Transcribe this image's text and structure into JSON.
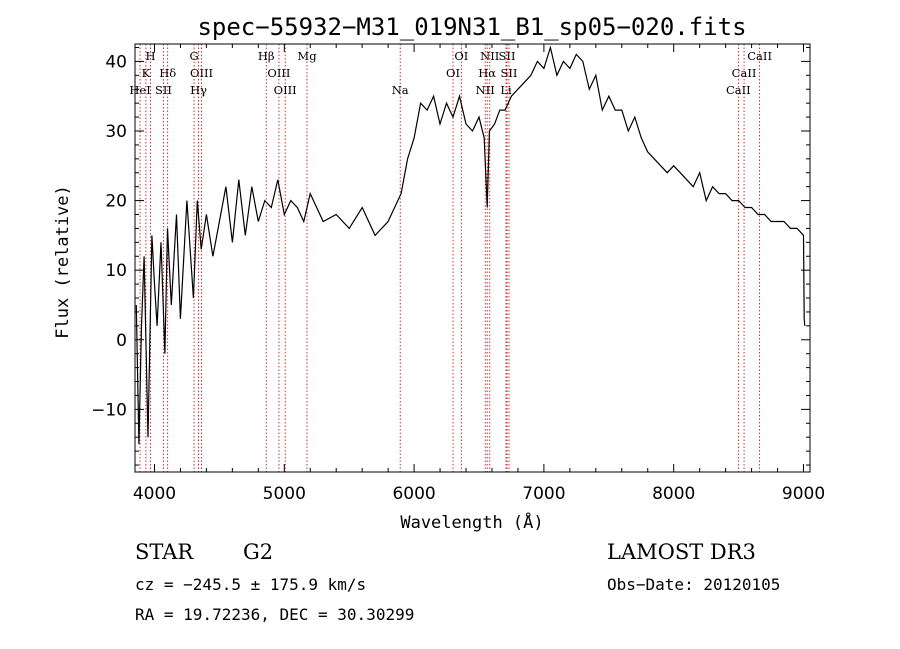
{
  "chart_data": {
    "type": "line",
    "title": "spec−55932−M31_019N31_B1_sp05−020.fits",
    "xlabel": "Wavelength (Å)",
    "ylabel": "Flux (relative)",
    "xlim": [
      3850,
      9050
    ],
    "ylim": [
      -19,
      42.5
    ],
    "x_ticks": [
      4000,
      5000,
      6000,
      7000,
      8000,
      9000
    ],
    "y_ticks": [
      -10,
      0,
      10,
      20,
      30,
      40
    ],
    "y_tick_labels": [
      "−10",
      "0",
      "10",
      "20",
      "30",
      "40"
    ],
    "x_tick_labels": [
      "4000",
      "5000",
      "6000",
      "7000",
      "8000",
      "9000"
    ],
    "grid": false,
    "series": [
      {
        "name": "spectrum",
        "x": [
          3860,
          3880,
          3900,
          3920,
          3950,
          3980,
          4000,
          4020,
          4050,
          4080,
          4100,
          4130,
          4170,
          4200,
          4250,
          4300,
          4330,
          4360,
          4400,
          4450,
          4500,
          4550,
          4600,
          4650,
          4700,
          4750,
          4800,
          4850,
          4900,
          4950,
          5000,
          5050,
          5100,
          5150,
          5200,
          5300,
          5400,
          5500,
          5600,
          5700,
          5800,
          5850,
          5900,
          5950,
          6000,
          6050,
          6100,
          6150,
          6200,
          6250,
          6300,
          6350,
          6400,
          6450,
          6500,
          6540,
          6563,
          6580,
          6620,
          6660,
          6700,
          6750,
          6800,
          6850,
          6900,
          6950,
          7000,
          7050,
          7100,
          7150,
          7200,
          7250,
          7300,
          7350,
          7400,
          7450,
          7500,
          7550,
          7600,
          7650,
          7700,
          7750,
          7800,
          7850,
          7900,
          7950,
          8000,
          8050,
          8100,
          8150,
          8200,
          8250,
          8300,
          8350,
          8400,
          8450,
          8500,
          8550,
          8600,
          8650,
          8700,
          8750,
          8800,
          8850,
          8900,
          8950,
          9000,
          9005,
          9010
        ],
        "values": [
          5,
          -15,
          2,
          12,
          -14,
          15,
          8,
          2,
          14,
          -2,
          16,
          5,
          18,
          3,
          20,
          6,
          20,
          13,
          18,
          12,
          17,
          22,
          14,
          23,
          15,
          22,
          17,
          20,
          19,
          23,
          18,
          20,
          19,
          17,
          21,
          17,
          18,
          16,
          19,
          15,
          17,
          19,
          21,
          26,
          29,
          34,
          33,
          35,
          31,
          34,
          32,
          35,
          31,
          30,
          32,
          29,
          19,
          30,
          31,
          33,
          33,
          35,
          36,
          37,
          38,
          40,
          39,
          42,
          38,
          40,
          39,
          41,
          40,
          36,
          38,
          33,
          35,
          33,
          33,
          30,
          32,
          29,
          27,
          26,
          25,
          24,
          25,
          24,
          23,
          22,
          24,
          20,
          22,
          21,
          21,
          20,
          20,
          19,
          19,
          18,
          18,
          17,
          17,
          17,
          16,
          16,
          15,
          3,
          2
        ]
      }
    ],
    "line_markers": [
      {
        "label": "H",
        "x": 3970,
        "row": 0
      },
      {
        "label": "K",
        "x": 3934,
        "row": 1
      },
      {
        "label": "HeI",
        "x": 3889,
        "row": 2
      },
      {
        "label": "SII",
        "x": 4069,
        "row": 2
      },
      {
        "label": "Hδ",
        "x": 4102,
        "row": 1
      },
      {
        "label": "G",
        "x": 4305,
        "row": 0
      },
      {
        "label": "OIII",
        "x": 4363,
        "row": 1
      },
      {
        "label": "Hγ",
        "x": 4340,
        "row": 2
      },
      {
        "label": "Hβ",
        "x": 4861,
        "row": 0
      },
      {
        "label": "OIII",
        "x": 4959,
        "row": 1
      },
      {
        "label": "OIII",
        "x": 5007,
        "row": 2
      },
      {
        "label": "Mg",
        "x": 5175,
        "row": 0
      },
      {
        "label": "Na",
        "x": 5893,
        "row": 2
      },
      {
        "label": "OI",
        "x": 6364,
        "row": 0
      },
      {
        "label": "OI",
        "x": 6300,
        "row": 1
      },
      {
        "label": "NII",
        "x": 6583,
        "row": 0
      },
      {
        "label": "Hα",
        "x": 6563,
        "row": 1
      },
      {
        "label": "NII",
        "x": 6548,
        "row": 2
      },
      {
        "label": "SII",
        "x": 6716,
        "row": 0
      },
      {
        "label": "SII",
        "x": 6731,
        "row": 1
      },
      {
        "label": "Li",
        "x": 6708,
        "row": 2
      },
      {
        "label": "CaII",
        "x": 8662,
        "row": 0
      },
      {
        "label": "CaII",
        "x": 8542,
        "row": 1
      },
      {
        "label": "CaII",
        "x": 8498,
        "row": 2
      }
    ]
  },
  "info": {
    "class_label": "STAR",
    "subclass": "G2",
    "survey": "LAMOST DR3",
    "cz": "cz = −245.5 ± 175.9 km/s",
    "obs_date": "Obs−Date: 20120105",
    "radec": "RA =  19.72236, DEC =  30.30299"
  }
}
